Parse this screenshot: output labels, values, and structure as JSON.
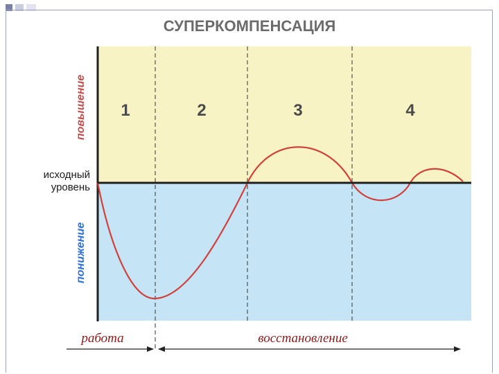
{
  "title": "СУПЕРКОМПЕНСАЦИЯ",
  "phases": [
    "1",
    "2",
    "3",
    "4"
  ],
  "axis_labels": {
    "increase": "повышение",
    "decrease": "понижение",
    "baseline_line1": "исходный",
    "baseline_line2": "уровень"
  },
  "bottom_labels": {
    "work": "работа",
    "recovery": "восстановление"
  },
  "colors": {
    "upper_zone": "#f8f3c4",
    "lower_zone": "#c5e5f6",
    "curve": "#d0413c",
    "baseline": "#1f1f1f",
    "title": "#6b6b6b",
    "increase_label": "#c0504d",
    "decrease_label": "#2f6fd6",
    "bottom_label": "#8b1a1a"
  }
}
